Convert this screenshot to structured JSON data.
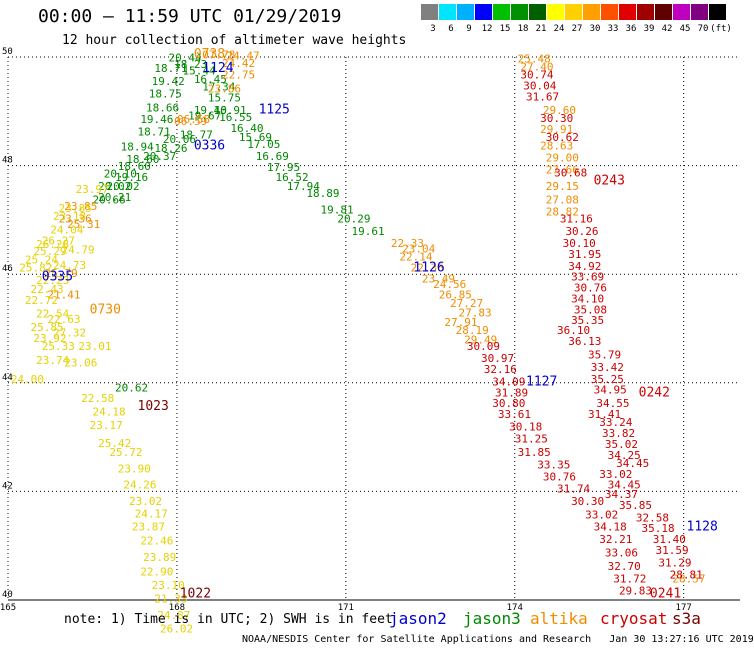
{
  "header": {
    "title": "00:00 – 11:59 UTC 01/29/2019",
    "subtitle": "12 hour collection of altimeter wave heights"
  },
  "scale": {
    "labels": [
      "3",
      "6",
      "9",
      "12",
      "15",
      "18",
      "21",
      "24",
      "27",
      "30",
      "33",
      "36",
      "39",
      "42",
      "45",
      "70",
      "(ft)"
    ],
    "colors": [
      "#808080",
      "#00e5ff",
      "#00b0ff",
      "#0000ff",
      "#00c000",
      "#009000",
      "#006000",
      "#ffff00",
      "#ffd000",
      "#ffa000",
      "#ff5000",
      "#e00000",
      "#a00000",
      "#600000",
      "#c000c0",
      "#800080",
      "#000000"
    ]
  },
  "colors": {
    "jason2": "#0000cc",
    "jason3": "#008800",
    "altika": "#f08c00",
    "cryosat": "#cc0000",
    "yellow": "#e6d200",
    "s3a": "#7a0000"
  },
  "chart_data": {
    "type": "scatter",
    "xlim": [
      165,
      178
    ],
    "ylim": [
      40,
      50
    ],
    "x_ticks": [
      165,
      168,
      171,
      174,
      177
    ],
    "y_ticks": [
      40,
      42,
      44,
      46,
      48,
      50
    ],
    "grid": true,
    "series": [
      {
        "name": "jason3",
        "color": "#008800",
        "points": [
          [
            167.85,
            49.92,
            "20.44"
          ],
          [
            167.6,
            49.72,
            "18.71"
          ],
          [
            167.95,
            49.8,
            "18.23"
          ],
          [
            168.1,
            49.68,
            "15.44"
          ],
          [
            167.55,
            49.48,
            "19.42"
          ],
          [
            168.3,
            49.52,
            "16.45"
          ],
          [
            167.5,
            49.25,
            "18.75"
          ],
          [
            168.45,
            49.38,
            "17.34"
          ],
          [
            167.45,
            49.0,
            "18.66"
          ],
          [
            168.55,
            49.18,
            "15.75"
          ],
          [
            167.35,
            48.78,
            "19.46"
          ],
          [
            168.3,
            48.95,
            "19.40"
          ],
          [
            168.65,
            48.95,
            "16.91"
          ],
          [
            168.2,
            48.85,
            "19.67"
          ],
          [
            168.75,
            48.82,
            "16.55"
          ],
          [
            167.3,
            48.55,
            "18.71"
          ],
          [
            168.05,
            48.5,
            "18.77"
          ],
          [
            168.95,
            48.62,
            "16.40"
          ],
          [
            167.75,
            48.42,
            "20.06"
          ],
          [
            169.1,
            48.45,
            "15.69"
          ],
          [
            167.0,
            48.28,
            "18.94"
          ],
          [
            167.6,
            48.25,
            "18.26"
          ],
          [
            169.25,
            48.32,
            "17.05"
          ],
          [
            167.1,
            48.05,
            "18.60"
          ],
          [
            167.4,
            48.1,
            "20.37"
          ],
          [
            169.4,
            48.1,
            "16.69"
          ],
          [
            166.95,
            47.92,
            "18.60"
          ],
          [
            169.6,
            47.9,
            "17.95"
          ],
          [
            166.7,
            47.78,
            "20.10"
          ],
          [
            166.9,
            47.72,
            "19.16"
          ],
          [
            169.75,
            47.72,
            "16.52"
          ],
          [
            166.75,
            47.55,
            "20.02"
          ],
          [
            166.6,
            47.55,
            "20.02"
          ],
          [
            169.95,
            47.55,
            "17.94"
          ],
          [
            166.6,
            47.35,
            "20.21"
          ],
          [
            166.5,
            47.3,
            "20.66"
          ],
          [
            170.3,
            47.42,
            "18.89"
          ],
          [
            170.55,
            47.12,
            "19.81"
          ],
          [
            170.85,
            46.95,
            "20.29"
          ],
          [
            171.1,
            46.72,
            "19.61"
          ],
          [
            166.9,
            43.84,
            "20.62"
          ]
        ]
      },
      {
        "name": "altika_north",
        "color": "#f08c00",
        "points": [
          [
            168.45,
            49.97,
            "07.78"
          ],
          [
            168.88,
            49.95,
            "24.47"
          ],
          [
            168.8,
            49.82,
            "24.42"
          ],
          [
            168.8,
            49.6,
            "22.75"
          ],
          [
            168.55,
            49.35,
            "23.86"
          ],
          [
            168.0,
            48.78,
            "06.58"
          ],
          [
            167.95,
            48.75,
            "06.59"
          ],
          [
            166.0,
            47.18,
            "23.85"
          ],
          [
            165.9,
            46.95,
            "23.36"
          ],
          [
            166.05,
            46.85,
            "25.31"
          ],
          [
            165.65,
            45.95,
            "25.79"
          ],
          [
            165.7,
            45.55,
            "21.41"
          ],
          [
            171.8,
            46.5,
            "22.33"
          ],
          [
            172.0,
            46.4,
            "23.04"
          ],
          [
            171.95,
            46.25,
            "22.14"
          ],
          [
            172.15,
            46.05,
            "22.36"
          ],
          [
            172.35,
            45.85,
            "23.49"
          ],
          [
            172.55,
            45.75,
            "24.56"
          ],
          [
            172.65,
            45.55,
            "26.85"
          ],
          [
            172.85,
            45.4,
            "27.27"
          ],
          [
            173.0,
            45.22,
            "27.83"
          ],
          [
            172.75,
            45.05,
            "27.91"
          ],
          [
            172.95,
            44.9,
            "28.19"
          ],
          [
            173.1,
            44.72,
            "29.49"
          ],
          [
            174.05,
            49.9,
            "25.48"
          ],
          [
            174.1,
            49.75,
            "27.40"
          ],
          [
            174.5,
            48.95,
            "29.60"
          ],
          [
            174.45,
            48.6,
            "29.91"
          ],
          [
            174.45,
            48.3,
            "28.63"
          ],
          [
            174.55,
            48.08,
            "29.00"
          ],
          [
            174.55,
            47.85,
            "27.66"
          ],
          [
            174.55,
            47.55,
            "29.15"
          ],
          [
            174.55,
            47.3,
            "27.08"
          ],
          [
            174.55,
            47.08,
            "28.82"
          ],
          [
            176.8,
            40.32,
            "28.57"
          ]
        ]
      },
      {
        "name": "yellow_track",
        "color": "#e6d200",
        "points": [
          [
            166.2,
            47.5,
            "23.97"
          ],
          [
            165.9,
            47.15,
            "23.85"
          ],
          [
            165.8,
            47.0,
            "23.18"
          ],
          [
            165.75,
            46.75,
            "24.04"
          ],
          [
            165.6,
            46.55,
            "26.27"
          ],
          [
            165.5,
            46.48,
            "26.28"
          ],
          [
            165.45,
            46.35,
            "25.29"
          ],
          [
            165.95,
            46.38,
            "24.79"
          ],
          [
            165.3,
            46.2,
            "25.24"
          ],
          [
            165.8,
            46.1,
            "24.73"
          ],
          [
            165.2,
            46.05,
            "25.82"
          ],
          [
            165.5,
            45.82,
            "22.23"
          ],
          [
            165.4,
            45.65,
            "22.43"
          ],
          [
            165.3,
            45.45,
            "22.72"
          ],
          [
            165.5,
            45.2,
            "22.54"
          ],
          [
            165.7,
            45.1,
            "22.63"
          ],
          [
            165.4,
            44.95,
            "25.85"
          ],
          [
            165.8,
            44.85,
            "27.32"
          ],
          [
            165.45,
            44.75,
            "23.92"
          ],
          [
            165.6,
            44.6,
            "25.33"
          ],
          [
            166.25,
            44.6,
            "23.01"
          ],
          [
            165.5,
            44.35,
            "23.74"
          ],
          [
            166.0,
            44.3,
            "23.06"
          ],
          [
            165.05,
            44.0,
            "24.00"
          ],
          [
            166.3,
            43.65,
            "22.58"
          ],
          [
            166.5,
            43.4,
            "24.18"
          ],
          [
            166.45,
            43.15,
            "23.17"
          ],
          [
            166.6,
            42.82,
            "25.42"
          ],
          [
            166.8,
            42.65,
            "25.72"
          ],
          [
            166.95,
            42.35,
            "23.90"
          ],
          [
            167.05,
            42.05,
            "24.26"
          ],
          [
            167.15,
            41.75,
            "23.02"
          ],
          [
            167.25,
            41.52,
            "24.17"
          ],
          [
            167.2,
            41.28,
            "23.87"
          ],
          [
            167.35,
            41.02,
            "22.46"
          ],
          [
            167.4,
            40.72,
            "23.89"
          ],
          [
            167.35,
            40.45,
            "22.90"
          ],
          [
            167.55,
            40.2,
            "23.10"
          ],
          [
            167.6,
            39.95,
            "21.33"
          ],
          [
            167.65,
            39.65,
            "24.87"
          ],
          [
            167.7,
            39.4,
            "26.02"
          ]
        ]
      },
      {
        "name": "cryosat",
        "color": "#cc0000",
        "points": [
          [
            174.1,
            49.6,
            "30.74"
          ],
          [
            174.15,
            49.4,
            "30.04"
          ],
          [
            174.2,
            49.2,
            "31.67"
          ],
          [
            174.45,
            48.8,
            "30.30"
          ],
          [
            174.55,
            48.45,
            "30.62"
          ],
          [
            174.7,
            47.8,
            "30.68"
          ],
          [
            174.8,
            46.95,
            "31.16"
          ],
          [
            174.9,
            46.72,
            "30.26"
          ],
          [
            174.85,
            46.5,
            "30.10"
          ],
          [
            174.95,
            46.3,
            "31.95"
          ],
          [
            174.95,
            46.08,
            "34.92"
          ],
          [
            175.0,
            45.88,
            "33.69"
          ],
          [
            175.05,
            45.68,
            "30.76"
          ],
          [
            175.0,
            45.48,
            "34.10"
          ],
          [
            175.05,
            45.28,
            "35.08"
          ],
          [
            175.0,
            45.08,
            "35.35"
          ],
          [
            174.75,
            44.9,
            "36.10"
          ],
          [
            174.95,
            44.7,
            "36.13"
          ],
          [
            175.3,
            44.45,
            "35.79"
          ],
          [
            175.35,
            44.22,
            "33.42"
          ],
          [
            175.35,
            44.0,
            "35.25"
          ],
          [
            175.4,
            43.8,
            "34.95"
          ],
          [
            175.45,
            43.55,
            "34.55"
          ],
          [
            175.3,
            43.35,
            "31.41"
          ],
          [
            175.5,
            43.2,
            "33.24"
          ],
          [
            175.55,
            43.0,
            "33.82"
          ],
          [
            175.6,
            42.8,
            "35.02"
          ],
          [
            175.65,
            42.6,
            "34.25"
          ],
          [
            175.8,
            42.45,
            "34.45"
          ],
          [
            175.5,
            42.25,
            "33.02"
          ],
          [
            175.65,
            42.05,
            "34.45"
          ],
          [
            175.6,
            41.88,
            "34.37"
          ],
          [
            175.85,
            41.68,
            "35.85"
          ],
          [
            176.15,
            41.45,
            "32.58"
          ],
          [
            176.25,
            41.25,
            "35.18"
          ],
          [
            176.45,
            41.05,
            "31.40"
          ],
          [
            176.5,
            40.85,
            "31.59"
          ],
          [
            176.55,
            40.62,
            "31.29"
          ],
          [
            176.75,
            40.4,
            "28.81"
          ],
          [
            173.15,
            44.6,
            "30.09"
          ],
          [
            173.4,
            44.38,
            "30.97"
          ],
          [
            173.45,
            44.18,
            "32.16"
          ],
          [
            173.6,
            43.95,
            "34.09"
          ],
          [
            173.65,
            43.75,
            "31.89"
          ],
          [
            173.6,
            43.55,
            "30.80"
          ],
          [
            173.7,
            43.35,
            "33.61"
          ],
          [
            173.9,
            43.12,
            "30.18"
          ],
          [
            174.0,
            42.9,
            "31.25"
          ],
          [
            174.05,
            42.65,
            "31.85"
          ],
          [
            174.4,
            42.42,
            "33.35"
          ],
          [
            174.5,
            42.2,
            "30.76"
          ],
          [
            174.75,
            41.98,
            "31.74"
          ],
          [
            175.0,
            41.75,
            "30.30"
          ],
          [
            175.25,
            41.5,
            "33.02"
          ],
          [
            175.4,
            41.28,
            "34.18"
          ],
          [
            175.5,
            41.05,
            "32.21"
          ],
          [
            175.6,
            40.8,
            "33.06"
          ],
          [
            175.65,
            40.55,
            "32.70"
          ],
          [
            175.75,
            40.32,
            "31.72"
          ],
          [
            175.85,
            40.1,
            "29.83"
          ]
        ]
      }
    ],
    "time_labels": [
      {
        "text": "1124",
        "x": 168.45,
        "y": 49.72,
        "sat": "jason2"
      },
      {
        "text": "1125",
        "x": 169.45,
        "y": 48.96,
        "sat": "jason2"
      },
      {
        "text": "0336",
        "x": 168.3,
        "y": 48.3,
        "sat": "jason2"
      },
      {
        "text": "1126",
        "x": 172.2,
        "y": 46.05,
        "sat": "jason2"
      },
      {
        "text": "0335",
        "x": 165.6,
        "y": 45.88,
        "sat": "jason2"
      },
      {
        "text": "1127",
        "x": 174.2,
        "y": 43.95,
        "sat": "jason2"
      },
      {
        "text": "1128",
        "x": 177.05,
        "y": 41.28,
        "sat": "jason2"
      },
      {
        "text": "0738",
        "x": 168.3,
        "y": 49.98,
        "sat": "altika"
      },
      {
        "text": "0730",
        "x": 166.45,
        "y": 45.28,
        "sat": "altika"
      },
      {
        "text": "0243",
        "x": 175.4,
        "y": 47.65,
        "sat": "cryosat"
      },
      {
        "text": "0242",
        "x": 176.2,
        "y": 43.75,
        "sat": "cryosat"
      },
      {
        "text": "0241",
        "x": 176.4,
        "y": 40.05,
        "sat": "cryosat"
      },
      {
        "text": "1023",
        "x": 167.3,
        "y": 43.5,
        "sat": "s3a"
      },
      {
        "text": "1022",
        "x": 168.05,
        "y": 40.05,
        "sat": "s3a"
      }
    ]
  },
  "footer": {
    "note": "note: 1) Time is in UTC; 2) SWH is in feet",
    "legend": [
      {
        "label": "jason2",
        "color": "#0000cc"
      },
      {
        "label": "jason3",
        "color": "#008800"
      },
      {
        "label": "altika",
        "color": "#f08c00"
      },
      {
        "label": "cryosat",
        "color": "#cc0000"
      },
      {
        "label": "s3a",
        "color": "#7a0000"
      }
    ],
    "credit": "NOAA/NESDIS Center for Satellite Applications and Research   Jan 30 13:27:16 UTC 2019"
  }
}
